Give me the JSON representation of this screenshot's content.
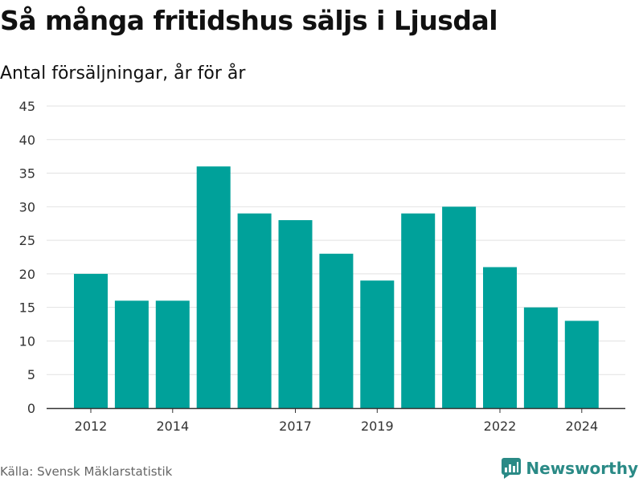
{
  "title": "Så många fritidshus säljs i Ljusdal",
  "subtitle": "Antal försäljningar, år för år",
  "source": "Källa: Svensk Mäklarstatistik",
  "brand": "Newsworthy",
  "colors": {
    "bar": "#00a19a",
    "grid": "#e2e2e2",
    "axis": "#333333",
    "brand": "#2a8a86"
  },
  "chart_data": {
    "type": "bar",
    "categories": [
      "2012",
      "2013",
      "2014",
      "2015",
      "2016",
      "2017",
      "2018",
      "2019",
      "2020",
      "2021",
      "2022",
      "2023",
      "2024"
    ],
    "values": [
      20,
      16,
      16,
      36,
      29,
      28,
      23,
      19,
      29,
      30,
      21,
      15,
      13
    ],
    "x_tick_labels": [
      "2012",
      "2014",
      "2017",
      "2019",
      "2022",
      "2024"
    ],
    "y_ticks": [
      0,
      5,
      10,
      15,
      20,
      25,
      30,
      35,
      40,
      45
    ],
    "ylim": [
      0,
      45
    ],
    "grid": true,
    "title": "Så många fritidshus säljs i Ljusdal",
    "subtitle": "Antal försäljningar, år för år",
    "xlabel": "",
    "ylabel": ""
  }
}
